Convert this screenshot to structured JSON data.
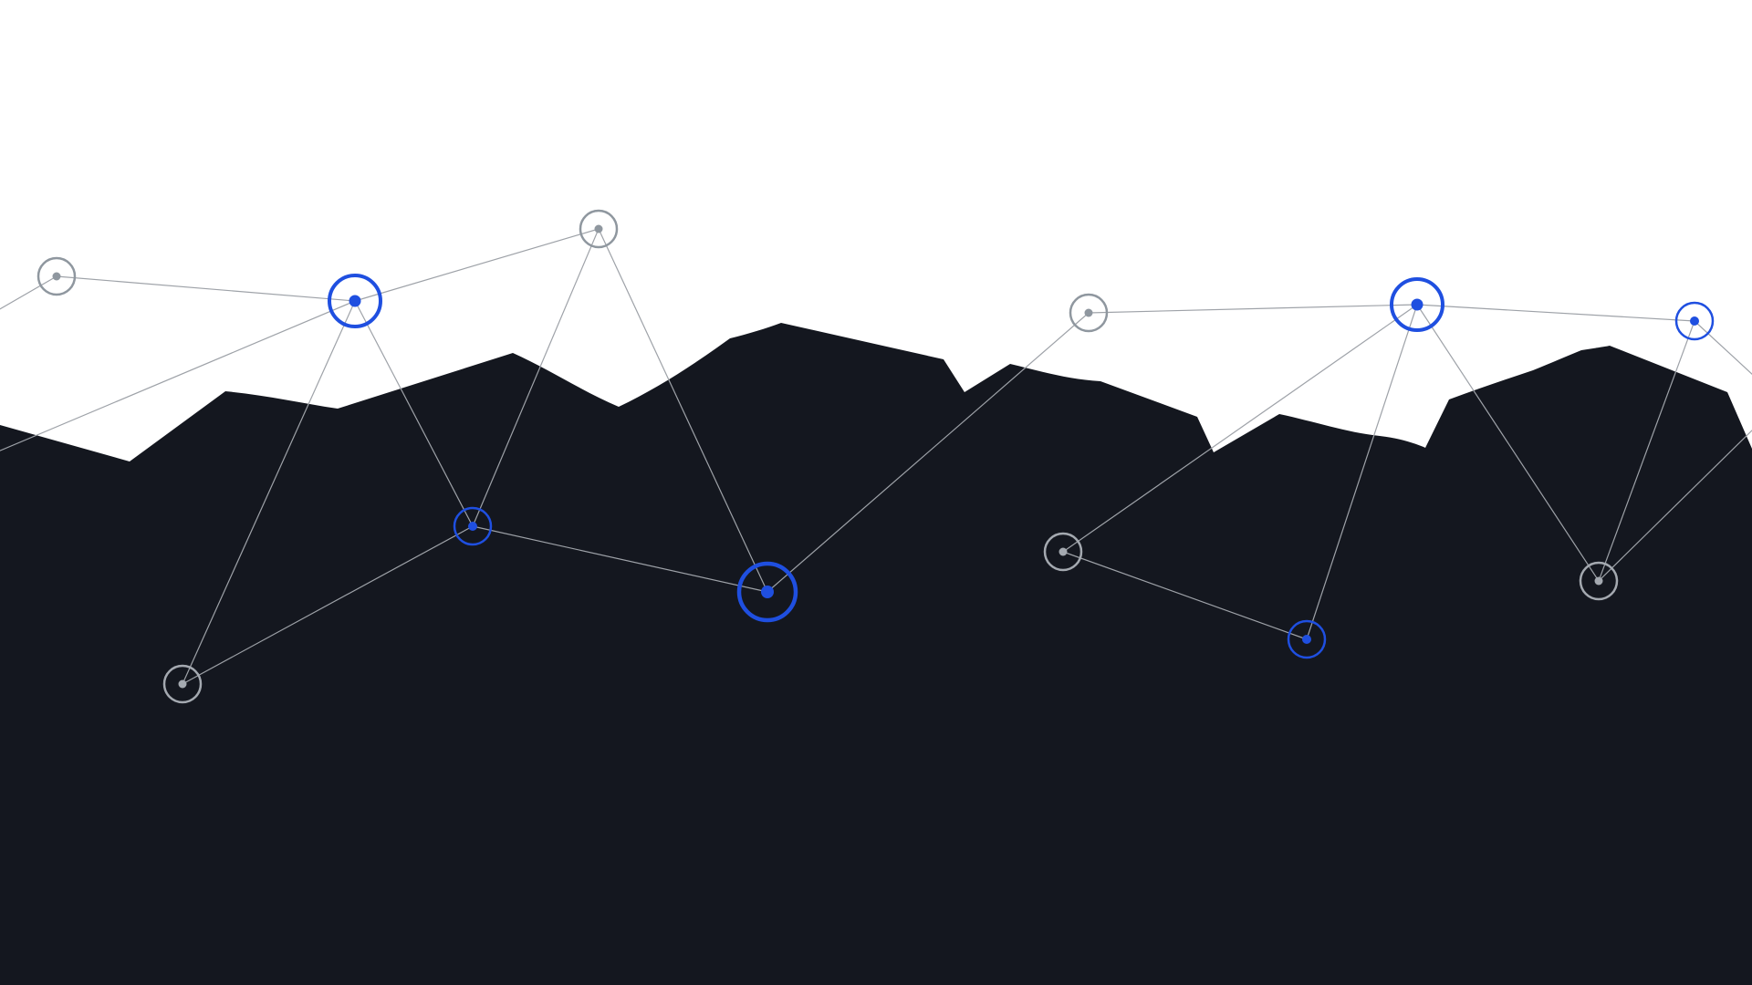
{
  "colors": {
    "background": "#ffffff",
    "terrain": "#14171f",
    "accent_node": "#1f4fe0",
    "muted_node_on_light": "#8f979f",
    "muted_node_on_dark": "#a4a9b0",
    "link_line": "#9ea2a8"
  },
  "network": {
    "node_variants": [
      "muted",
      "accent-large",
      "muted",
      "accent-small",
      "accent-xlarge",
      "muted",
      "muted",
      "muted",
      "accent-large",
      "accent-small",
      "muted",
      "accent-small"
    ],
    "link_count": 19
  },
  "icons": {
    "node": "node-circle-icon"
  }
}
